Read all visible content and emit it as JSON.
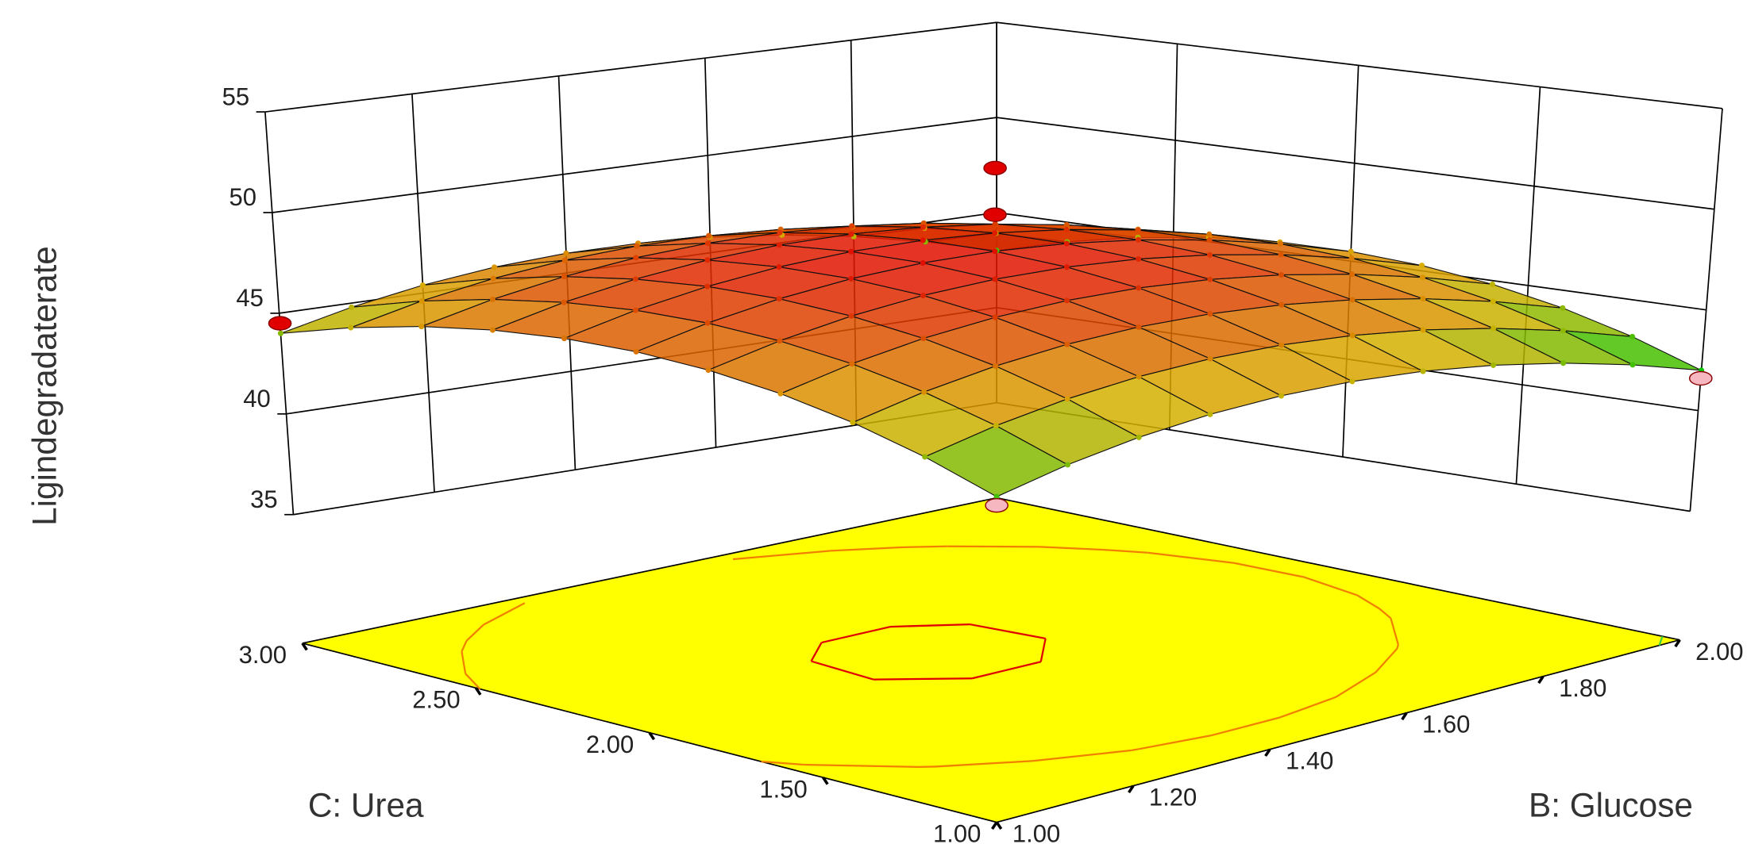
{
  "chart_data": {
    "type": "surface3d",
    "z_label": "Ligindegradaterate",
    "x_label": "B: Glucose",
    "y_label": "C: Urea",
    "x": [
      1,
      1.1,
      1.2,
      1.3,
      1.4,
      1.5,
      1.6,
      1.7,
      1.8,
      1.9,
      2
    ],
    "y": [
      1,
      1.2,
      1.4,
      1.6,
      1.8,
      2,
      2.2,
      2.4,
      2.6,
      2.8,
      3
    ],
    "z": [
      [
        43,
        43.8,
        44.4,
        44.8,
        45,
        45,
        44.8,
        44.4,
        43.8,
        43,
        42
      ],
      [
        44.18,
        44.98,
        45.58,
        45.98,
        46.18,
        46.18,
        45.98,
        45.58,
        44.98,
        44.18,
        43.18
      ],
      [
        45.12,
        45.92,
        46.52,
        46.92,
        47.12,
        47.12,
        46.92,
        46.52,
        45.92,
        45.12,
        44.12
      ],
      [
        45.82,
        46.62,
        47.22,
        47.62,
        47.82,
        47.82,
        47.62,
        47.22,
        46.62,
        45.82,
        44.82
      ],
      [
        46.28,
        47.08,
        47.68,
        48.08,
        48.28,
        48.28,
        48.08,
        47.68,
        47.08,
        46.28,
        45.28
      ],
      [
        46.5,
        47.3,
        47.9,
        48.3,
        48.5,
        48.5,
        48.3,
        47.9,
        47.3,
        46.5,
        45.5
      ],
      [
        46.48,
        47.28,
        47.88,
        48.28,
        48.48,
        48.48,
        48.28,
        47.88,
        47.28,
        46.48,
        45.48
      ],
      [
        46.22,
        47.02,
        47.62,
        48.02,
        48.22,
        48.22,
        48.02,
        47.62,
        47.02,
        46.22,
        45.22
      ],
      [
        45.72,
        46.52,
        47.12,
        47.52,
        47.72,
        47.72,
        47.52,
        47.12,
        46.52,
        45.72,
        44.72
      ],
      [
        44.98,
        45.78,
        46.38,
        46.78,
        46.98,
        46.98,
        46.78,
        46.38,
        45.78,
        44.98,
        43.98
      ],
      [
        44,
        44.8,
        45.4,
        45.8,
        46,
        46,
        45.8,
        45.4,
        44.8,
        44,
        43
      ]
    ],
    "xlim": [
      1,
      2
    ],
    "ylim": [
      1,
      3
    ],
    "zlim": [
      35,
      55
    ],
    "xticks": [
      {
        "value": 1,
        "label": "1.00"
      },
      {
        "value": 1.2,
        "label": "1.20"
      },
      {
        "value": 1.4,
        "label": "1.40"
      },
      {
        "value": 1.6,
        "label": "1.60"
      },
      {
        "value": 1.8,
        "label": "1.80"
      },
      {
        "value": 2,
        "label": "2.00"
      }
    ],
    "yticks": [
      {
        "value": 1,
        "label": "1.00"
      },
      {
        "value": 1.5,
        "label": "1.50"
      },
      {
        "value": 2,
        "label": "2.00"
      },
      {
        "value": 2.5,
        "label": "2.50"
      },
      {
        "value": 3,
        "label": "3.00"
      }
    ],
    "zticks": [
      35,
      40,
      45,
      50,
      55
    ],
    "colormap": [
      "#00c800",
      "#d8b000",
      "#e01000"
    ],
    "floor_color": "#ffff00",
    "contours": [
      {
        "level": 48.35,
        "color": "#e00000"
      },
      {
        "level": 46,
        "color": "#f08000"
      },
      {
        "level": 42.3,
        "color": "#40d040"
      }
    ],
    "points": {
      "x": [
        1,
        1.5,
        1.5,
        1,
        2
      ],
      "y": [
        3,
        2,
        2,
        1,
        1
      ],
      "z": [
        44.5,
        52.6,
        50.3,
        42.6,
        41.6
      ],
      "above_color": "#e00000",
      "below_color": "#f6b7c1"
    }
  }
}
